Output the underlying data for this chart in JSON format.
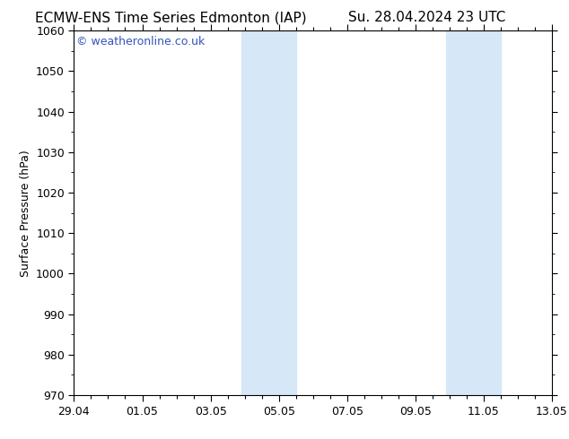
{
  "title_left": "ECMW-ENS Time Series Edmonton (IAP)",
  "title_right": "Su. 28.04.2024 23 UTC",
  "ylabel": "Surface Pressure (hPa)",
  "ylim": [
    970,
    1060
  ],
  "yticks": [
    970,
    980,
    990,
    1000,
    1010,
    1020,
    1030,
    1040,
    1050,
    1060
  ],
  "xtick_labels": [
    "29.04",
    "01.05",
    "03.05",
    "05.05",
    "07.05",
    "09.05",
    "11.05",
    "13.05"
  ],
  "xtick_positions": [
    0,
    2,
    4,
    6,
    8,
    10,
    12,
    14
  ],
  "shaded_bands": [
    {
      "x_start": 4.9,
      "x_end": 6.5
    },
    {
      "x_start": 10.9,
      "x_end": 12.5
    }
  ],
  "shaded_color": "#d6e8f7",
  "background_color": "#ffffff",
  "plot_bg_color": "#ffffff",
  "watermark_text": "© weatheronline.co.uk",
  "watermark_color": "#3355bb",
  "watermark_fontsize": 9,
  "title_fontsize": 11,
  "tick_fontsize": 9,
  "ylabel_fontsize": 9,
  "figsize": [
    6.34,
    4.9
  ],
  "dpi": 100
}
